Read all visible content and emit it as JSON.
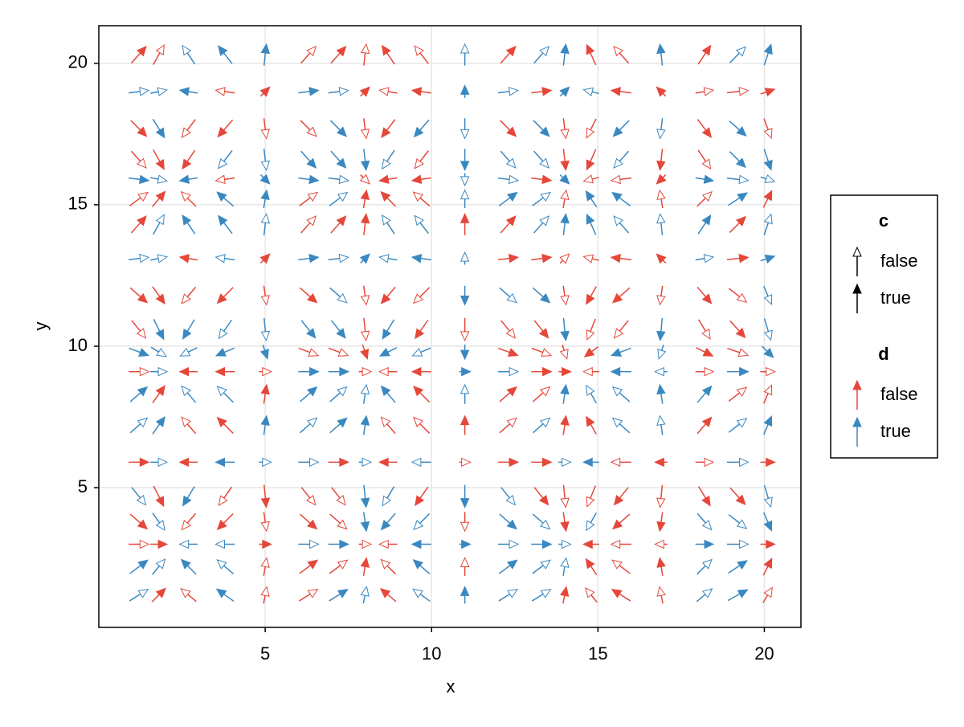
{
  "chart_data": {
    "type": "quiver",
    "x_label": "x",
    "y_label": "y",
    "xlim": [
      0,
      21.1
    ],
    "ylim": [
      0.06,
      21.33
    ],
    "xticks": [
      5,
      10,
      15,
      20
    ],
    "yticks": [
      5,
      10,
      15,
      20
    ],
    "grid": true,
    "x": [
      1.2,
      1.8,
      2.7,
      3.8,
      5.0,
      6.3,
      7.2,
      8.0,
      8.7,
      9.7,
      11.0,
      12.3,
      13.3,
      14.0,
      14.8,
      15.7,
      16.9,
      18.2,
      19.2,
      20.1
    ],
    "y": [
      1.2,
      2.2,
      3.0,
      3.8,
      4.7,
      5.9,
      7.2,
      8.3,
      9.1,
      9.8,
      10.6,
      11.8,
      13.1,
      14.3,
      15.2,
      15.9,
      16.6,
      17.7,
      19.0,
      20.3
    ],
    "u": [
      0.8,
      0.5,
      -0.6,
      -0.7,
      0.1,
      0.8,
      0.8,
      0.1,
      -0.6,
      -0.7,
      0.0,
      0.8,
      0.8,
      0.1,
      -0.4,
      -0.8,
      -0.1,
      0.6,
      0.9,
      0.3
    ],
    "v": [
      0.5,
      0.6,
      0.0,
      -0.7,
      -1.0,
      0.0,
      0.7,
      0.7,
      0.0,
      -0.3,
      -1.0,
      -0.7,
      0.1,
      0.9,
      0.6,
      -0.1,
      -0.9,
      -0.8,
      0.1,
      0.9
    ],
    "c": [
      [
        false,
        true,
        false,
        true,
        false,
        false,
        true,
        false,
        true,
        false,
        true,
        false,
        false,
        true,
        false,
        true,
        false,
        false,
        true,
        false
      ],
      [
        true,
        false,
        true,
        false,
        false,
        true,
        false,
        true,
        false,
        true,
        false,
        true,
        false,
        false,
        true,
        false,
        true,
        false,
        true,
        true
      ],
      [
        false,
        true,
        false,
        false,
        true,
        false,
        true,
        false,
        false,
        true,
        true,
        false,
        true,
        false,
        true,
        false,
        false,
        true,
        false,
        true
      ],
      [
        true,
        false,
        false,
        true,
        false,
        true,
        false,
        true,
        true,
        false,
        false,
        true,
        false,
        true,
        false,
        true,
        true,
        false,
        false,
        true
      ],
      [
        false,
        true,
        true,
        false,
        true,
        false,
        false,
        true,
        false,
        true,
        true,
        false,
        true,
        false,
        false,
        true,
        false,
        true,
        true,
        false
      ],
      [
        true,
        false,
        true,
        true,
        false,
        false,
        true,
        false,
        true,
        false,
        false,
        true,
        true,
        false,
        true,
        false,
        true,
        false,
        false,
        true
      ],
      [
        false,
        true,
        false,
        true,
        true,
        false,
        true,
        true,
        false,
        false,
        true,
        false,
        false,
        true,
        true,
        false,
        false,
        true,
        false,
        true
      ],
      [
        true,
        true,
        false,
        false,
        true,
        true,
        false,
        false,
        true,
        true,
        false,
        true,
        false,
        true,
        false,
        false,
        true,
        true,
        false,
        false
      ],
      [
        false,
        false,
        true,
        true,
        false,
        true,
        true,
        false,
        false,
        true,
        true,
        false,
        true,
        true,
        false,
        true,
        false,
        false,
        true,
        false
      ],
      [
        true,
        false,
        false,
        true,
        true,
        false,
        false,
        true,
        true,
        false,
        true,
        true,
        false,
        false,
        true,
        true,
        false,
        true,
        false,
        true
      ],
      [
        false,
        true,
        true,
        false,
        false,
        true,
        true,
        false,
        true,
        true,
        false,
        false,
        true,
        true,
        false,
        false,
        true,
        false,
        true,
        false
      ],
      [
        true,
        true,
        false,
        true,
        false,
        true,
        false,
        false,
        true,
        false,
        true,
        false,
        true,
        false,
        true,
        true,
        false,
        true,
        false,
        false
      ],
      [
        false,
        false,
        true,
        false,
        true,
        true,
        false,
        true,
        false,
        true,
        false,
        true,
        true,
        false,
        false,
        true,
        true,
        false,
        true,
        true
      ],
      [
        true,
        false,
        true,
        true,
        false,
        false,
        true,
        true,
        false,
        false,
        true,
        true,
        false,
        true,
        true,
        false,
        false,
        true,
        true,
        false
      ],
      [
        false,
        true,
        false,
        true,
        true,
        false,
        false,
        true,
        true,
        false,
        false,
        true,
        false,
        false,
        true,
        true,
        false,
        false,
        true,
        true
      ],
      [
        true,
        false,
        true,
        false,
        true,
        true,
        false,
        false,
        true,
        true,
        false,
        false,
        true,
        true,
        false,
        false,
        true,
        true,
        false,
        false
      ],
      [
        false,
        true,
        true,
        false,
        false,
        true,
        true,
        true,
        false,
        false,
        true,
        false,
        false,
        true,
        true,
        false,
        true,
        false,
        true,
        true
      ],
      [
        true,
        true,
        false,
        true,
        false,
        false,
        true,
        false,
        true,
        true,
        false,
        true,
        true,
        false,
        false,
        true,
        false,
        true,
        true,
        false
      ],
      [
        false,
        false,
        true,
        false,
        true,
        true,
        false,
        true,
        false,
        true,
        true,
        false,
        true,
        true,
        false,
        true,
        true,
        false,
        false,
        true
      ],
      [
        true,
        false,
        false,
        true,
        true,
        false,
        true,
        false,
        true,
        false,
        false,
        true,
        false,
        true,
        true,
        false,
        true,
        true,
        false,
        true
      ]
    ],
    "d": [
      [
        true,
        false,
        false,
        true,
        false,
        false,
        true,
        true,
        false,
        true,
        true,
        true,
        true,
        false,
        false,
        false,
        false,
        true,
        true,
        false
      ],
      [
        true,
        true,
        true,
        true,
        false,
        false,
        false,
        false,
        false,
        true,
        false,
        true,
        true,
        true,
        false,
        false,
        false,
        true,
        true,
        false
      ],
      [
        false,
        false,
        true,
        true,
        false,
        true,
        true,
        false,
        false,
        true,
        true,
        true,
        true,
        true,
        false,
        false,
        false,
        true,
        true,
        false
      ],
      [
        false,
        true,
        false,
        false,
        false,
        false,
        false,
        true,
        true,
        true,
        false,
        true,
        true,
        false,
        true,
        false,
        false,
        true,
        true,
        true
      ],
      [
        true,
        false,
        true,
        false,
        false,
        false,
        false,
        true,
        true,
        false,
        true,
        true,
        false,
        false,
        false,
        false,
        false,
        false,
        false,
        true
      ],
      [
        false,
        true,
        false,
        true,
        true,
        true,
        false,
        true,
        false,
        true,
        false,
        false,
        false,
        true,
        true,
        false,
        false,
        false,
        true,
        false
      ],
      [
        true,
        true,
        false,
        false,
        true,
        true,
        true,
        true,
        false,
        false,
        false,
        false,
        true,
        false,
        false,
        true,
        true,
        false,
        true,
        true
      ],
      [
        true,
        false,
        true,
        true,
        false,
        true,
        true,
        true,
        true,
        false,
        true,
        false,
        false,
        true,
        true,
        true,
        true,
        true,
        false,
        false
      ],
      [
        false,
        true,
        false,
        false,
        false,
        true,
        true,
        false,
        false,
        false,
        true,
        true,
        false,
        false,
        false,
        true,
        true,
        false,
        true,
        false
      ],
      [
        true,
        true,
        true,
        true,
        true,
        false,
        false,
        false,
        true,
        true,
        true,
        false,
        false,
        false,
        false,
        true,
        true,
        false,
        false,
        true
      ],
      [
        false,
        true,
        true,
        true,
        true,
        true,
        true,
        false,
        true,
        false,
        false,
        false,
        false,
        true,
        false,
        false,
        true,
        false,
        false,
        true
      ],
      [
        false,
        false,
        false,
        false,
        false,
        false,
        true,
        false,
        false,
        false,
        true,
        true,
        true,
        false,
        false,
        false,
        false,
        false,
        false,
        true
      ],
      [
        true,
        true,
        false,
        true,
        false,
        true,
        true,
        true,
        true,
        true,
        true,
        false,
        false,
        false,
        false,
        false,
        false,
        true,
        false,
        true
      ],
      [
        false,
        true,
        true,
        true,
        true,
        false,
        false,
        false,
        true,
        true,
        false,
        false,
        true,
        true,
        true,
        true,
        true,
        true,
        false,
        true
      ],
      [
        false,
        false,
        false,
        true,
        true,
        false,
        true,
        false,
        false,
        false,
        true,
        true,
        true,
        false,
        true,
        true,
        false,
        false,
        true,
        false
      ],
      [
        true,
        true,
        true,
        false,
        true,
        true,
        true,
        false,
        false,
        false,
        true,
        true,
        false,
        true,
        false,
        false,
        false,
        true,
        true,
        true
      ],
      [
        false,
        false,
        false,
        true,
        true,
        true,
        true,
        true,
        true,
        false,
        true,
        true,
        true,
        false,
        false,
        true,
        false,
        false,
        true,
        true
      ],
      [
        false,
        true,
        false,
        false,
        false,
        false,
        true,
        false,
        false,
        true,
        true,
        false,
        true,
        false,
        false,
        true,
        true,
        false,
        true,
        false
      ],
      [
        true,
        true,
        true,
        false,
        false,
        true,
        true,
        false,
        false,
        false,
        true,
        true,
        false,
        true,
        true,
        false,
        false,
        false,
        false,
        false
      ],
      [
        false,
        false,
        true,
        true,
        true,
        false,
        false,
        false,
        false,
        false,
        true,
        false,
        true,
        true,
        false,
        false,
        true,
        false,
        true,
        true
      ]
    ],
    "legend": {
      "c": {
        "title": "c",
        "labels": [
          "false",
          "true"
        ],
        "color": "#000000"
      },
      "d": {
        "title": "d",
        "labels": [
          "false",
          "true"
        ],
        "colors": [
          "#e5473a",
          "#3a88c0"
        ]
      }
    }
  }
}
